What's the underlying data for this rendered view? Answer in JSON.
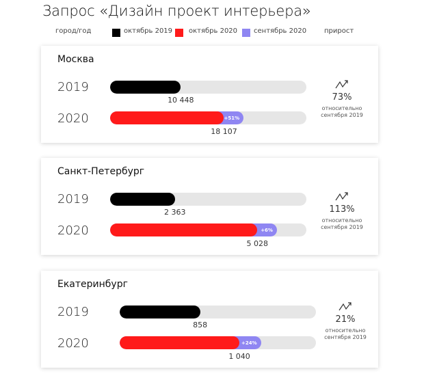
{
  "title": "Запрос «Дизайн проект интерьера»",
  "legend": {
    "city_year": "город/год",
    "oct2019": "октябрь 2019",
    "oct2020": "октябрь 2020",
    "sep2020": "сентябрь 2020",
    "growth": "прирост"
  },
  "colors": {
    "oct2019": "#000000",
    "oct2020": "#ff1a1a",
    "sep2020": "#8f86f2",
    "track": "#e6e6e6"
  },
  "chart_data": {
    "type": "bar",
    "title": "Запрос «Дизайн проект интерьера»",
    "growth_note": "относительно сентября 2019",
    "cities": [
      {
        "name": "Москва",
        "year1": "2019",
        "year2": "2020",
        "oct2019": "10 448",
        "oct2020": "18 107",
        "fill_2019": 0.36,
        "fill_2020": 0.58,
        "fill_sep": 0.68,
        "sep_label": "+51%",
        "growth": "73%"
      },
      {
        "name": "Санкт-Петербург",
        "year1": "2019",
        "year2": "2020",
        "oct2019": "2 363",
        "oct2020": "5 028",
        "fill_2019": 0.33,
        "fill_2020": 0.75,
        "fill_sep": 0.85,
        "sep_label": "+6%",
        "growth": "113%"
      },
      {
        "name": "Екатеринбург",
        "year1": "2019",
        "year2": "2020",
        "oct2019": "858",
        "oct2020": "1 040",
        "fill_2019": 0.41,
        "fill_2020": 0.61,
        "fill_sep": 0.72,
        "sep_label": "+24%",
        "growth": "21%"
      }
    ]
  }
}
